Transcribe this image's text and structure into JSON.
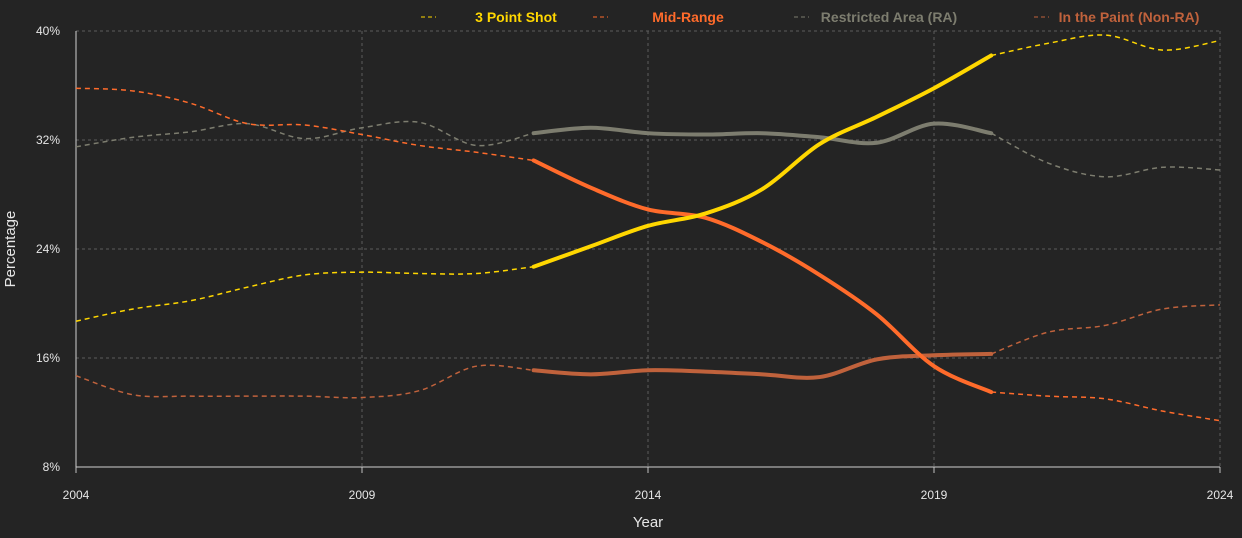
{
  "chart_data": {
    "type": "line",
    "title": "",
    "xlabel": "Year",
    "ylabel": "Percentage",
    "xlim": [
      2004,
      2024
    ],
    "ylim": [
      8,
      40
    ],
    "x_ticks": [
      "2004",
      "2009",
      "2014",
      "2019",
      "2024"
    ],
    "y_ticks": [
      "8%",
      "16%",
      "24%",
      "32%",
      "40%"
    ],
    "grid": true,
    "legend_position": "top",
    "solid_range": [
      2012,
      2020
    ],
    "note": "Solid segments span 2012–2020; dashed segments extend the series before and after.",
    "series": [
      {
        "name": "3 Point Shot",
        "color": "#ffd700",
        "x": [
          2004,
          2005,
          2006,
          2007,
          2008,
          2009,
          2010,
          2011,
          2012,
          2013,
          2014,
          2015,
          2016,
          2017,
          2018,
          2019,
          2020,
          2021,
          2022,
          2023,
          2024
        ],
        "values": [
          18.7,
          19.6,
          20.2,
          21.2,
          22.1,
          22.3,
          22.2,
          22.2,
          22.7,
          24.2,
          25.7,
          26.6,
          28.4,
          31.7,
          33.7,
          35.8,
          38.2,
          39.1,
          39.7,
          38.6,
          39.3
        ]
      },
      {
        "name": "Mid-Range",
        "color": "#ff6b2b",
        "x": [
          2004,
          2005,
          2006,
          2007,
          2008,
          2009,
          2010,
          2011,
          2012,
          2013,
          2014,
          2015,
          2016,
          2017,
          2018,
          2019,
          2020,
          2021,
          2022,
          2023,
          2024
        ],
        "values": [
          35.8,
          35.6,
          34.7,
          33.2,
          33.1,
          32.4,
          31.6,
          31.1,
          30.5,
          28.5,
          26.9,
          26.3,
          24.5,
          22.1,
          19.2,
          15.4,
          13.5,
          13.2,
          13.0,
          12.1,
          11.4
        ]
      },
      {
        "name": "Restricted Area (RA)",
        "color": "#7d7d6f",
        "x": [
          2004,
          2005,
          2006,
          2007,
          2008,
          2009,
          2010,
          2011,
          2012,
          2013,
          2014,
          2015,
          2016,
          2017,
          2018,
          2019,
          2020,
          2021,
          2022,
          2023,
          2024
        ],
        "values": [
          31.5,
          32.2,
          32.6,
          33.2,
          32.1,
          32.9,
          33.3,
          31.6,
          32.5,
          32.9,
          32.5,
          32.4,
          32.5,
          32.2,
          31.8,
          33.2,
          32.5,
          30.3,
          29.3,
          30.0,
          29.8
        ]
      },
      {
        "name": "In the Paint (Non-RA)",
        "color": "#c0623c",
        "x": [
          2004,
          2005,
          2006,
          2007,
          2008,
          2009,
          2010,
          2011,
          2012,
          2013,
          2014,
          2015,
          2016,
          2017,
          2018,
          2019,
          2020,
          2021,
          2022,
          2023,
          2024
        ],
        "values": [
          14.7,
          13.3,
          13.2,
          13.2,
          13.2,
          13.1,
          13.6,
          15.4,
          15.1,
          14.8,
          15.1,
          15.0,
          14.8,
          14.6,
          15.9,
          16.2,
          16.3,
          17.9,
          18.4,
          19.6,
          19.9
        ]
      }
    ]
  }
}
